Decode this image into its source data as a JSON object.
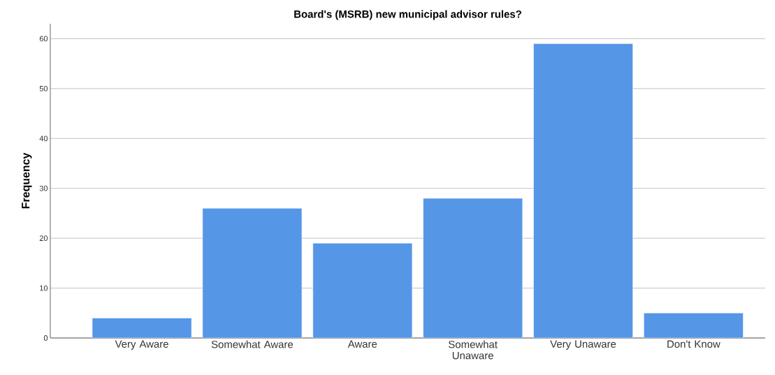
{
  "chart_data": {
    "type": "bar",
    "title": "Board's (MSRB) new municipal advisor rules?",
    "ylabel": "Frequency",
    "categories": [
      "Very Aware",
      "Somewhat Aware",
      "Aware",
      "Somewhat Unaware",
      "Very Unaware",
      "Don't Know"
    ],
    "values": [
      4,
      26,
      19,
      28,
      59,
      5
    ],
    "color": "#5596e6",
    "ylim": [
      0,
      63
    ],
    "yticks": [
      0,
      10,
      20,
      30,
      40,
      50,
      60
    ],
    "grid": "y"
  }
}
